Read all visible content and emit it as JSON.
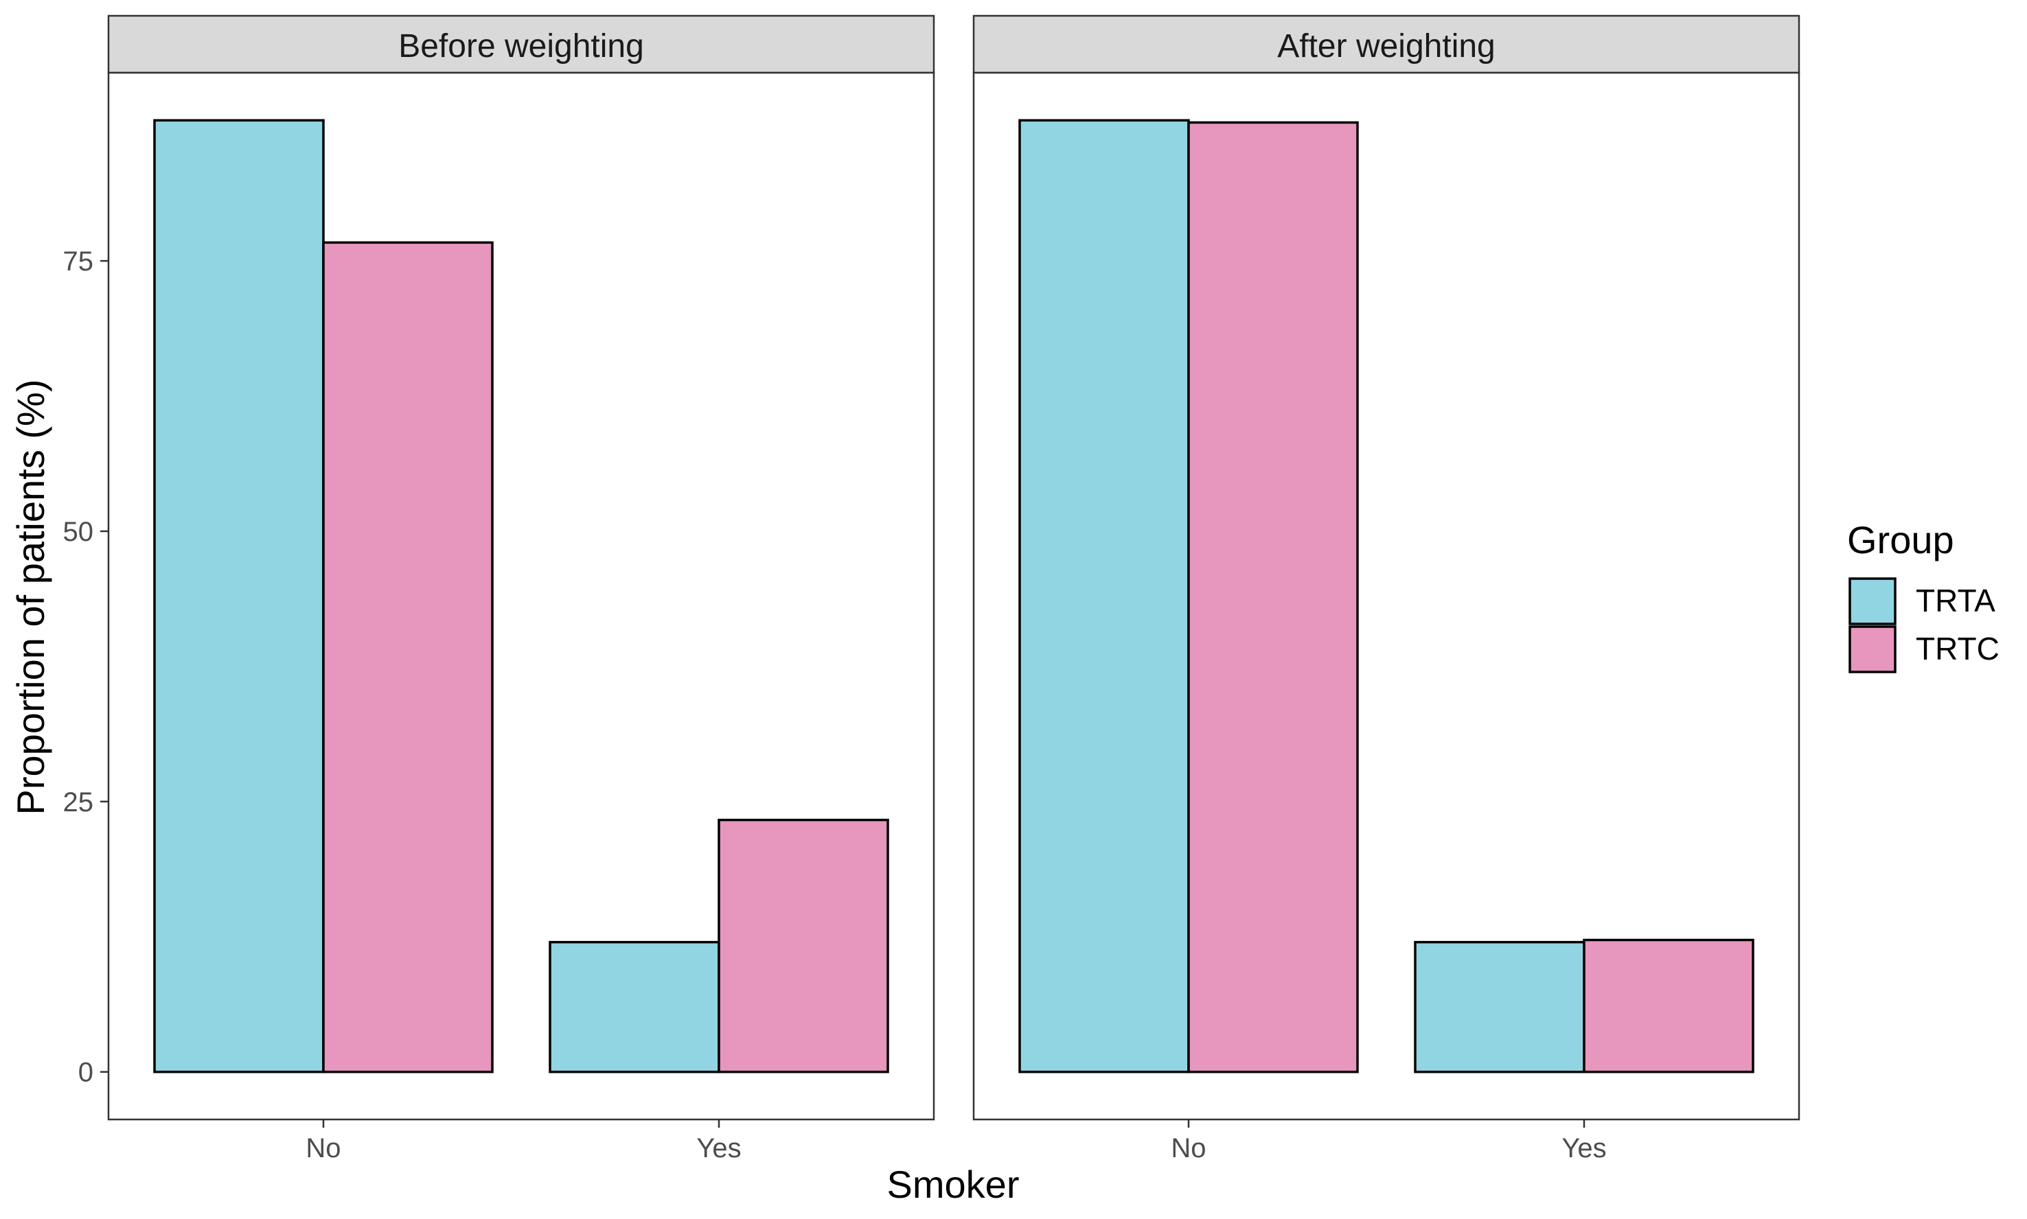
{
  "chart_data": {
    "type": "bar",
    "facets": [
      {
        "title": "Before weighting",
        "categories": [
          "No",
          "Yes"
        ],
        "series": [
          {
            "name": "TRTA",
            "values": [
              88.0,
              12.0
            ]
          },
          {
            "name": "TRTC",
            "values": [
              76.7,
              23.3
            ]
          }
        ]
      },
      {
        "title": "After weighting",
        "categories": [
          "No",
          "Yes"
        ],
        "series": [
          {
            "name": "TRTA",
            "values": [
              88.0,
              12.0
            ]
          },
          {
            "name": "TRTC",
            "values": [
              87.8,
              12.2
            ]
          }
        ]
      }
    ],
    "xlabel": "Smoker",
    "ylabel": "Proportion of patients (%)",
    "ylim": [
      -4.4,
      92.4
    ],
    "yticks": [
      "0",
      "25",
      "50",
      "75"
    ],
    "legend": {
      "title": "Group",
      "position": "right",
      "entries": [
        "TRTA",
        "TRTC"
      ]
    },
    "colors": {
      "TRTA": "#91D5E3",
      "TRTC": "#E796BE",
      "strip": "#D9D9D9",
      "outline": "#000000"
    },
    "grid": false
  }
}
